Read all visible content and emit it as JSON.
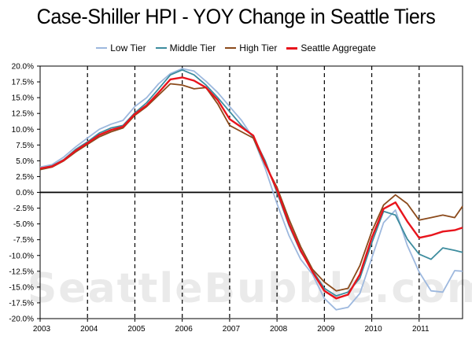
{
  "chart_data": {
    "type": "line",
    "title": "Case-Shiller HPI - YOY Change in Seattle Tiers",
    "xlabel": "",
    "ylabel": "",
    "watermark": "SeattleBubble.com",
    "x_ticks": [
      "2003",
      "2004",
      "2005",
      "2006",
      "2007",
      "2008",
      "2009",
      "2010",
      "2011"
    ],
    "y_ticks": [
      "20.0%",
      "17.5%",
      "15.0%",
      "12.5%",
      "10.0%",
      "7.5%",
      "5.0%",
      "2.5%",
      "0.0%",
      "-2.5%",
      "-5.0%",
      "-7.5%",
      "-10.0%",
      "-12.5%",
      "-15.0%",
      "-17.5%",
      "-20.0%"
    ],
    "ylim": [
      -20,
      20
    ],
    "xlim": [
      "2003-01",
      "2011-12"
    ],
    "x_gridlines": "dashed vertical at each January",
    "legend_position": "top-center",
    "x": [
      "2003-01",
      "2003-04",
      "2003-07",
      "2003-10",
      "2004-01",
      "2004-04",
      "2004-07",
      "2004-10",
      "2005-01",
      "2005-04",
      "2005-07",
      "2005-10",
      "2006-01",
      "2006-04",
      "2006-07",
      "2006-10",
      "2007-01",
      "2007-04",
      "2007-07",
      "2007-10",
      "2008-01",
      "2008-04",
      "2008-07",
      "2008-10",
      "2009-01",
      "2009-04",
      "2009-07",
      "2009-10",
      "2010-01",
      "2010-04",
      "2010-07",
      "2010-10",
      "2011-01",
      "2011-04",
      "2011-07",
      "2011-10",
      "2011-12"
    ],
    "series": [
      {
        "name": "Low Tier",
        "color": "#9db8de",
        "values": [
          4.0,
          4.4,
          5.6,
          7.2,
          8.6,
          10.0,
          10.8,
          11.4,
          13.6,
          15.0,
          17.2,
          18.8,
          19.6,
          19.2,
          17.6,
          15.8,
          13.6,
          11.4,
          8.6,
          3.8,
          -1.8,
          -6.8,
          -10.6,
          -13.0,
          -16.8,
          -18.6,
          -18.2,
          -16.0,
          -10.4,
          -4.8,
          -2.8,
          -8.4,
          -12.6,
          -15.6,
          -15.8,
          -12.4,
          -12.5
        ]
      },
      {
        "name": "Middle Tier",
        "color": "#3d8c9e",
        "values": [
          3.8,
          4.2,
          5.2,
          6.8,
          8.0,
          9.4,
          10.2,
          10.6,
          12.6,
          14.2,
          16.4,
          18.6,
          19.4,
          18.6,
          17.0,
          15.0,
          12.8,
          10.6,
          8.8,
          5.0,
          0.0,
          -5.2,
          -9.4,
          -12.4,
          -15.2,
          -16.4,
          -15.8,
          -13.6,
          -8.0,
          -3.0,
          -3.6,
          -7.4,
          -9.8,
          -10.6,
          -8.8,
          -9.2,
          -9.5
        ]
      },
      {
        "name": "High Tier",
        "color": "#8b4a1b",
        "values": [
          3.6,
          4.0,
          5.0,
          6.4,
          7.6,
          8.8,
          9.6,
          10.2,
          12.2,
          13.6,
          15.4,
          17.2,
          17.0,
          16.4,
          16.6,
          14.0,
          10.6,
          9.6,
          8.6,
          4.4,
          0.8,
          -4.2,
          -8.6,
          -12.2,
          -14.2,
          -15.6,
          -15.2,
          -11.6,
          -6.2,
          -2.0,
          -0.4,
          -1.8,
          -4.4,
          -4.0,
          -3.6,
          -4.0,
          -2.2
        ]
      },
      {
        "name": "Seattle Aggregate",
        "color": "#e8141c",
        "values": [
          3.8,
          4.1,
          5.1,
          6.6,
          7.8,
          9.1,
          9.9,
          10.4,
          12.4,
          13.8,
          15.8,
          17.9,
          18.2,
          17.7,
          16.6,
          14.6,
          11.6,
          10.3,
          9.0,
          4.6,
          0.4,
          -4.9,
          -9.2,
          -12.6,
          -15.6,
          -16.8,
          -16.2,
          -13.0,
          -7.2,
          -2.6,
          -1.6,
          -4.6,
          -7.2,
          -6.8,
          -6.2,
          -6.0,
          -5.6
        ]
      }
    ]
  }
}
